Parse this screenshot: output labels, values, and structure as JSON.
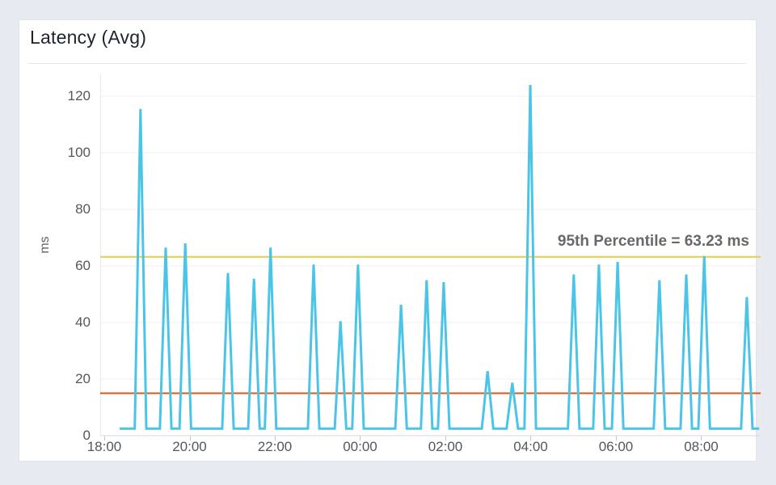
{
  "card": {
    "title": "Latency (Avg)"
  },
  "chart_data": {
    "type": "line",
    "title": "Latency (Avg)",
    "xlabel": "",
    "ylabel": "ms",
    "grid": "horizontal",
    "legend": "none",
    "y_ticks": [
      0,
      20,
      40,
      60,
      80,
      100,
      120
    ],
    "y_range": [
      0,
      128
    ],
    "x_tick_labels": [
      "18:00",
      "20:00",
      "22:00",
      "00:00",
      "02:00",
      "04:00",
      "06:00",
      "08:00"
    ],
    "x_tick_hours": [
      0,
      2,
      4,
      6,
      8,
      10,
      12,
      14
    ],
    "x_start_time": "18:00",
    "x_range_hours": [
      -0.095,
      15.394
    ],
    "series": [
      {
        "name": "latency-avg-ms",
        "color": "#4ac4e7",
        "baseline_ms": 2.5,
        "start_hour": 0.36,
        "end_hour": 15.36,
        "spike_half_width_hours": 0.135,
        "spikes": [
          {
            "t": 0.85,
            "v": 115.5
          },
          {
            "t": 1.44,
            "v": 66.5
          },
          {
            "t": 1.9,
            "v": 68.0
          },
          {
            "t": 2.9,
            "v": 57.5
          },
          {
            "t": 3.51,
            "v": 55.5
          },
          {
            "t": 3.9,
            "v": 66.5
          },
          {
            "t": 4.91,
            "v": 60.5
          },
          {
            "t": 5.54,
            "v": 40.5
          },
          {
            "t": 5.95,
            "v": 60.5
          },
          {
            "t": 6.96,
            "v": 46.3
          },
          {
            "t": 7.56,
            "v": 55.0
          },
          {
            "t": 7.96,
            "v": 54.3
          },
          {
            "t": 8.99,
            "v": 22.8
          },
          {
            "t": 9.57,
            "v": 18.7
          },
          {
            "t": 9.99,
            "v": 124.0
          },
          {
            "t": 11.01,
            "v": 57.0
          },
          {
            "t": 11.6,
            "v": 60.5
          },
          {
            "t": 12.04,
            "v": 61.4
          },
          {
            "t": 13.02,
            "v": 55.0
          },
          {
            "t": 13.65,
            "v": 57.0
          },
          {
            "t": 14.07,
            "v": 63.5
          },
          {
            "t": 15.07,
            "v": 49.0
          }
        ]
      }
    ],
    "reference_lines": [
      {
        "name": "95th-percentile-line",
        "value_ms": 63.23,
        "color": "#ecca4b",
        "label": "95th Percentile = 63.23 ms"
      },
      {
        "name": "threshold-line",
        "value_ms": 15.0,
        "color": "#dd5714",
        "label": ""
      }
    ],
    "colors": {
      "series": "#4ac4e7",
      "percentile_line": "#ecca4b",
      "threshold_line": "#dd5714",
      "grid": "#efeff1",
      "axis": "#d8dade",
      "tick": "#c6c9ce",
      "labels": "#54575d",
      "annotation": "#67686b"
    }
  }
}
